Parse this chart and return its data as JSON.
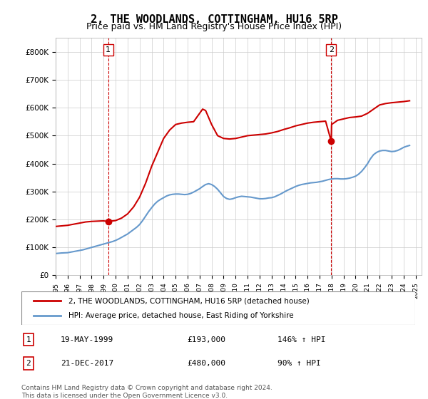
{
  "title": "2, THE WOODLANDS, COTTINGHAM, HU16 5RP",
  "subtitle": "Price paid vs. HM Land Registry's House Price Index (HPI)",
  "title_fontsize": 11,
  "subtitle_fontsize": 9,
  "ylabel_format": "£{0}K",
  "yticks": [
    0,
    100000,
    200000,
    300000,
    400000,
    500000,
    600000,
    700000,
    800000
  ],
  "ytick_labels": [
    "£0",
    "£100K",
    "£200K",
    "£300K",
    "£400K",
    "£500K",
    "£600K",
    "£700K",
    "£800K"
  ],
  "xlim_start": 1995.0,
  "xlim_end": 2025.5,
  "ylim_min": 0,
  "ylim_max": 850000,
  "sale1_x": 1999.38,
  "sale1_y": 193000,
  "sale1_label": "1",
  "sale1_date": "19-MAY-1999",
  "sale1_price": "£193,000",
  "sale1_hpi": "146% ↑ HPI",
  "sale2_x": 2017.97,
  "sale2_y": 480000,
  "sale2_label": "2",
  "sale2_date": "21-DEC-2017",
  "sale2_price": "£480,000",
  "sale2_hpi": "90% ↑ HPI",
  "hpi_color": "#6699cc",
  "price_color": "#cc0000",
  "vline_color": "#cc0000",
  "vline_style": "--",
  "legend_label_price": "2, THE WOODLANDS, COTTINGHAM, HU16 5RP (detached house)",
  "legend_label_hpi": "HPI: Average price, detached house, East Riding of Yorkshire",
  "footnote": "Contains HM Land Registry data © Crown copyright and database right 2024.\nThis data is licensed under the Open Government Licence v3.0.",
  "hpi_data_x": [
    1995.0,
    1995.25,
    1995.5,
    1995.75,
    1996.0,
    1996.25,
    1996.5,
    1996.75,
    1997.0,
    1997.25,
    1997.5,
    1997.75,
    1998.0,
    1998.25,
    1998.5,
    1998.75,
    1999.0,
    1999.25,
    1999.5,
    1999.75,
    2000.0,
    2000.25,
    2000.5,
    2000.75,
    2001.0,
    2001.25,
    2001.5,
    2001.75,
    2002.0,
    2002.25,
    2002.5,
    2002.75,
    2003.0,
    2003.25,
    2003.5,
    2003.75,
    2004.0,
    2004.25,
    2004.5,
    2004.75,
    2005.0,
    2005.25,
    2005.5,
    2005.75,
    2006.0,
    2006.25,
    2006.5,
    2006.75,
    2007.0,
    2007.25,
    2007.5,
    2007.75,
    2008.0,
    2008.25,
    2008.5,
    2008.75,
    2009.0,
    2009.25,
    2009.5,
    2009.75,
    2010.0,
    2010.25,
    2010.5,
    2010.75,
    2011.0,
    2011.25,
    2011.5,
    2011.75,
    2012.0,
    2012.25,
    2012.5,
    2012.75,
    2013.0,
    2013.25,
    2013.5,
    2013.75,
    2014.0,
    2014.25,
    2014.5,
    2014.75,
    2015.0,
    2015.25,
    2015.5,
    2015.75,
    2016.0,
    2016.25,
    2016.5,
    2016.75,
    2017.0,
    2017.25,
    2017.5,
    2017.75,
    2018.0,
    2018.25,
    2018.5,
    2018.75,
    2019.0,
    2019.25,
    2019.5,
    2019.75,
    2020.0,
    2020.25,
    2020.5,
    2020.75,
    2021.0,
    2021.25,
    2021.5,
    2021.75,
    2022.0,
    2022.25,
    2022.5,
    2022.75,
    2023.0,
    2023.25,
    2023.5,
    2023.75,
    2024.0,
    2024.25,
    2024.5
  ],
  "hpi_data_y": [
    78000,
    79000,
    80000,
    80500,
    81000,
    83000,
    85000,
    87000,
    89000,
    91000,
    94000,
    97000,
    100000,
    103000,
    106000,
    109000,
    112000,
    115000,
    118000,
    121000,
    125000,
    130000,
    136000,
    142000,
    148000,
    156000,
    164000,
    172000,
    182000,
    196000,
    212000,
    228000,
    242000,
    255000,
    265000,
    272000,
    278000,
    284000,
    288000,
    290000,
    291000,
    291000,
    290000,
    289000,
    290000,
    293000,
    298000,
    304000,
    310000,
    318000,
    325000,
    328000,
    325000,
    318000,
    308000,
    295000,
    282000,
    275000,
    272000,
    274000,
    278000,
    281000,
    283000,
    282000,
    281000,
    280000,
    278000,
    276000,
    274000,
    274000,
    275000,
    277000,
    278000,
    281000,
    286000,
    291000,
    297000,
    303000,
    308000,
    313000,
    318000,
    322000,
    325000,
    327000,
    329000,
    331000,
    332000,
    333000,
    335000,
    337000,
    340000,
    343000,
    345000,
    346000,
    346000,
    345000,
    345000,
    346000,
    348000,
    351000,
    355000,
    362000,
    372000,
    385000,
    400000,
    418000,
    432000,
    440000,
    445000,
    447000,
    447000,
    445000,
    443000,
    444000,
    447000,
    452000,
    458000,
    462000,
    465000
  ],
  "price_data_x": [
    1995.0,
    1995.25,
    1995.5,
    1995.75,
    1996.0,
    1996.25,
    1996.5,
    1996.75,
    1997.0,
    1997.25,
    1997.5,
    1997.75,
    1998.0,
    1998.25,
    1998.5,
    1998.75,
    1999.0,
    1999.38,
    2000.0,
    2000.5,
    2001.0,
    2001.5,
    2002.0,
    2002.5,
    2003.0,
    2003.5,
    2004.0,
    2004.5,
    2005.0,
    2005.5,
    2006.0,
    2006.5,
    2007.0,
    2007.25,
    2007.5,
    2007.75,
    2008.0,
    2008.25,
    2008.5,
    2009.0,
    2009.5,
    2010.0,
    2010.5,
    2011.0,
    2011.5,
    2012.0,
    2012.5,
    2013.0,
    2013.5,
    2014.0,
    2014.5,
    2015.0,
    2015.5,
    2016.0,
    2016.5,
    2017.0,
    2017.5,
    2017.97,
    2018.0,
    2018.5,
    2019.0,
    2019.5,
    2020.0,
    2020.5,
    2021.0,
    2021.5,
    2022.0,
    2022.5,
    2023.0,
    2023.5,
    2024.0,
    2024.5
  ],
  "price_data_y": [
    175000,
    176000,
    177000,
    178000,
    179000,
    181000,
    183000,
    185000,
    187000,
    189000,
    191000,
    192000,
    193000,
    193500,
    194000,
    194500,
    194800,
    193000,
    196000,
    205000,
    220000,
    245000,
    280000,
    330000,
    390000,
    440000,
    490000,
    520000,
    540000,
    545000,
    548000,
    550000,
    580000,
    595000,
    590000,
    565000,
    540000,
    520000,
    500000,
    490000,
    488000,
    490000,
    495000,
    500000,
    502000,
    504000,
    506000,
    510000,
    515000,
    522000,
    528000,
    535000,
    540000,
    545000,
    548000,
    550000,
    552000,
    480000,
    540000,
    555000,
    560000,
    565000,
    567000,
    570000,
    580000,
    595000,
    610000,
    615000,
    618000,
    620000,
    622000,
    625000
  ]
}
